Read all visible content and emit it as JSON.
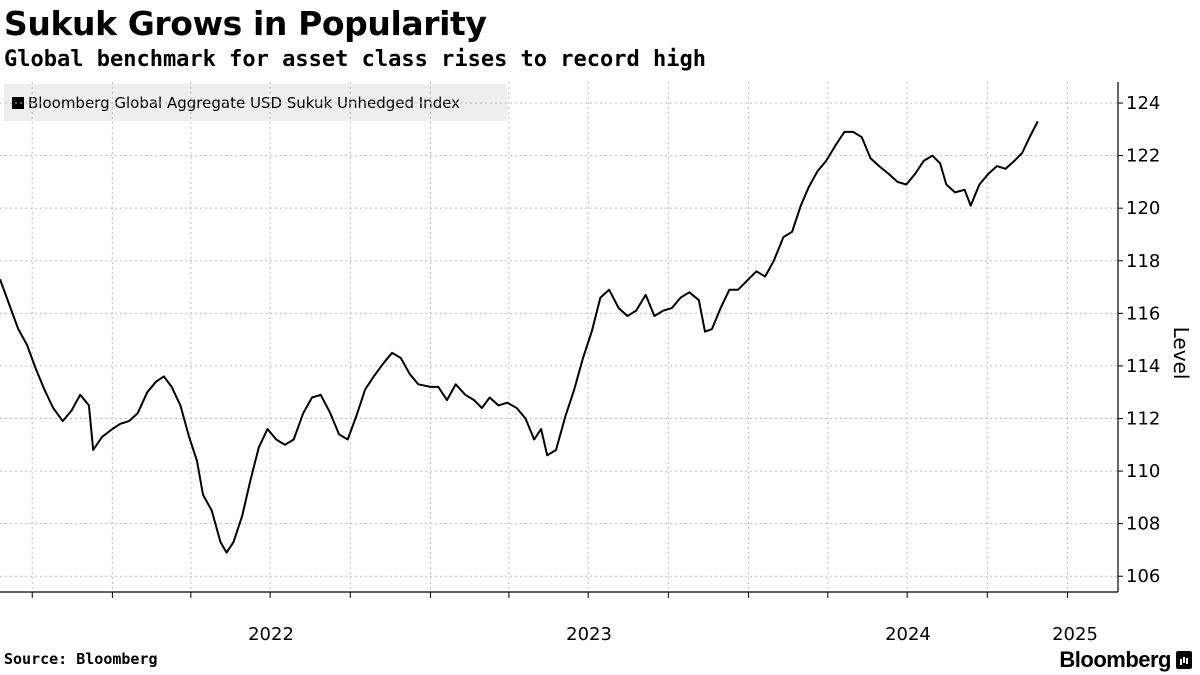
{
  "header": {
    "title": "Sukuk Grows in Popularity",
    "subtitle": "Global benchmark for asset class rises to record high"
  },
  "legend": {
    "label": "Bloomberg Global Aggregate USD Sukuk Unhedged Index",
    "color": "#000000"
  },
  "footer": {
    "source": "Source: Bloomberg",
    "brand": "Bloomberg"
  },
  "chart_data": {
    "type": "line",
    "title": "Sukuk Grows in Popularity",
    "subtitle": "Global benchmark for asset class rises to record high",
    "ylabel": "Level",
    "ylim": [
      105.4,
      124.8
    ],
    "yticks": [
      106,
      108,
      110,
      112,
      114,
      116,
      118,
      120,
      122,
      124
    ],
    "xlim": [
      "2021-08-25",
      "2025-02-28"
    ],
    "xticks": [
      "2022",
      "2023",
      "2024",
      "2025"
    ],
    "grid": true,
    "legend_position": "top-left",
    "series": [
      {
        "name": "Bloomberg Global Aggregate USD Sukuk Unhedged Index",
        "color": "#000000",
        "points": [
          [
            "2021-08-25",
            117.3
          ],
          [
            "2021-09-05",
            116.3
          ],
          [
            "2021-09-15",
            115.4
          ],
          [
            "2021-09-25",
            114.8
          ],
          [
            "2021-10-05",
            113.9
          ],
          [
            "2021-10-15",
            113.1
          ],
          [
            "2021-10-25",
            112.4
          ],
          [
            "2021-11-05",
            111.9
          ],
          [
            "2021-11-15",
            112.3
          ],
          [
            "2021-11-25",
            112.9
          ],
          [
            "2021-12-05",
            112.5
          ],
          [
            "2021-12-10",
            110.8
          ],
          [
            "2021-12-20",
            111.3
          ],
          [
            "2022-01-01",
            111.6
          ],
          [
            "2022-01-10",
            111.8
          ],
          [
            "2022-01-20",
            111.9
          ],
          [
            "2022-01-30",
            112.2
          ],
          [
            "2022-02-10",
            113.0
          ],
          [
            "2022-02-20",
            113.4
          ],
          [
            "2022-03-01",
            113.6
          ],
          [
            "2022-03-10",
            113.2
          ],
          [
            "2022-03-20",
            112.5
          ],
          [
            "2022-03-30",
            111.3
          ],
          [
            "2022-04-08",
            110.4
          ],
          [
            "2022-04-15",
            109.1
          ],
          [
            "2022-04-25",
            108.5
          ],
          [
            "2022-05-05",
            107.3
          ],
          [
            "2022-05-12",
            106.9
          ],
          [
            "2022-05-20",
            107.3
          ],
          [
            "2022-05-30",
            108.3
          ],
          [
            "2022-06-08",
            109.6
          ],
          [
            "2022-06-18",
            110.9
          ],
          [
            "2022-06-28",
            111.6
          ],
          [
            "2022-07-08",
            111.2
          ],
          [
            "2022-07-18",
            111.0
          ],
          [
            "2022-07-28",
            111.2
          ],
          [
            "2022-08-08",
            112.2
          ],
          [
            "2022-08-18",
            112.8
          ],
          [
            "2022-08-28",
            112.9
          ],
          [
            "2022-09-08",
            112.2
          ],
          [
            "2022-09-18",
            111.4
          ],
          [
            "2022-09-28",
            111.2
          ],
          [
            "2022-10-08",
            112.1
          ],
          [
            "2022-10-18",
            113.1
          ],
          [
            "2022-10-28",
            113.6
          ],
          [
            "2022-11-08",
            114.1
          ],
          [
            "2022-11-18",
            114.5
          ],
          [
            "2022-11-28",
            114.3
          ],
          [
            "2022-12-08",
            113.7
          ],
          [
            "2022-12-18",
            113.3
          ],
          [
            "2023-01-01",
            113.2
          ],
          [
            "2023-01-10",
            113.2
          ],
          [
            "2023-01-20",
            112.7
          ],
          [
            "2023-01-30",
            113.3
          ],
          [
            "2023-02-10",
            112.9
          ],
          [
            "2023-02-20",
            112.7
          ],
          [
            "2023-03-01",
            112.4
          ],
          [
            "2023-03-10",
            112.8
          ],
          [
            "2023-03-20",
            112.5
          ],
          [
            "2023-03-30",
            112.6
          ],
          [
            "2023-04-10",
            112.4
          ],
          [
            "2023-04-20",
            112.0
          ],
          [
            "2023-04-30",
            111.2
          ],
          [
            "2023-05-08",
            111.6
          ],
          [
            "2023-05-15",
            110.6
          ],
          [
            "2023-05-25",
            110.8
          ],
          [
            "2023-06-05",
            112.1
          ],
          [
            "2023-06-15",
            113.1
          ],
          [
            "2023-06-25",
            114.3
          ],
          [
            "2023-07-05",
            115.3
          ],
          [
            "2023-07-15",
            116.6
          ],
          [
            "2023-07-25",
            116.9
          ],
          [
            "2023-08-05",
            116.2
          ],
          [
            "2023-08-15",
            115.9
          ],
          [
            "2023-08-25",
            116.1
          ],
          [
            "2023-09-05",
            116.7
          ],
          [
            "2023-09-15",
            115.9
          ],
          [
            "2023-09-25",
            116.1
          ],
          [
            "2023-10-05",
            116.2
          ],
          [
            "2023-10-15",
            116.6
          ],
          [
            "2023-10-25",
            116.8
          ],
          [
            "2023-11-05",
            116.5
          ],
          [
            "2023-11-12",
            115.3
          ],
          [
            "2023-11-20",
            115.4
          ],
          [
            "2023-11-30",
            116.2
          ],
          [
            "2023-12-10",
            116.9
          ],
          [
            "2023-12-20",
            116.9
          ],
          [
            "2024-01-01",
            117.3
          ],
          [
            "2024-01-10",
            117.6
          ],
          [
            "2024-01-20",
            117.4
          ],
          [
            "2024-01-30",
            118.0
          ],
          [
            "2024-02-10",
            118.9
          ],
          [
            "2024-02-20",
            119.1
          ],
          [
            "2024-03-01",
            120.1
          ],
          [
            "2024-03-10",
            120.8
          ],
          [
            "2024-03-20",
            121.4
          ],
          [
            "2024-03-30",
            121.8
          ],
          [
            "2024-04-10",
            122.4
          ],
          [
            "2024-04-20",
            122.9
          ],
          [
            "2024-04-30",
            122.9
          ],
          [
            "2024-05-10",
            122.7
          ],
          [
            "2024-05-20",
            121.9
          ],
          [
            "2024-05-30",
            121.6
          ],
          [
            "2024-06-10",
            121.3
          ],
          [
            "2024-06-20",
            121.0
          ],
          [
            "2024-06-30",
            120.9
          ],
          [
            "2024-07-10",
            121.3
          ],
          [
            "2024-07-20",
            121.8
          ],
          [
            "2024-07-30",
            122.0
          ],
          [
            "2024-08-08",
            121.7
          ],
          [
            "2024-08-15",
            120.9
          ],
          [
            "2024-08-25",
            120.6
          ],
          [
            "2024-09-05",
            120.7
          ],
          [
            "2024-09-12",
            120.1
          ],
          [
            "2024-09-22",
            120.9
          ],
          [
            "2024-10-02",
            121.3
          ],
          [
            "2024-10-12",
            121.6
          ],
          [
            "2024-10-22",
            121.5
          ],
          [
            "2024-11-01",
            121.8
          ],
          [
            "2024-11-10",
            122.1
          ],
          [
            "2024-11-20",
            122.8
          ],
          [
            "2024-11-28",
            123.3
          ]
        ]
      }
    ]
  }
}
